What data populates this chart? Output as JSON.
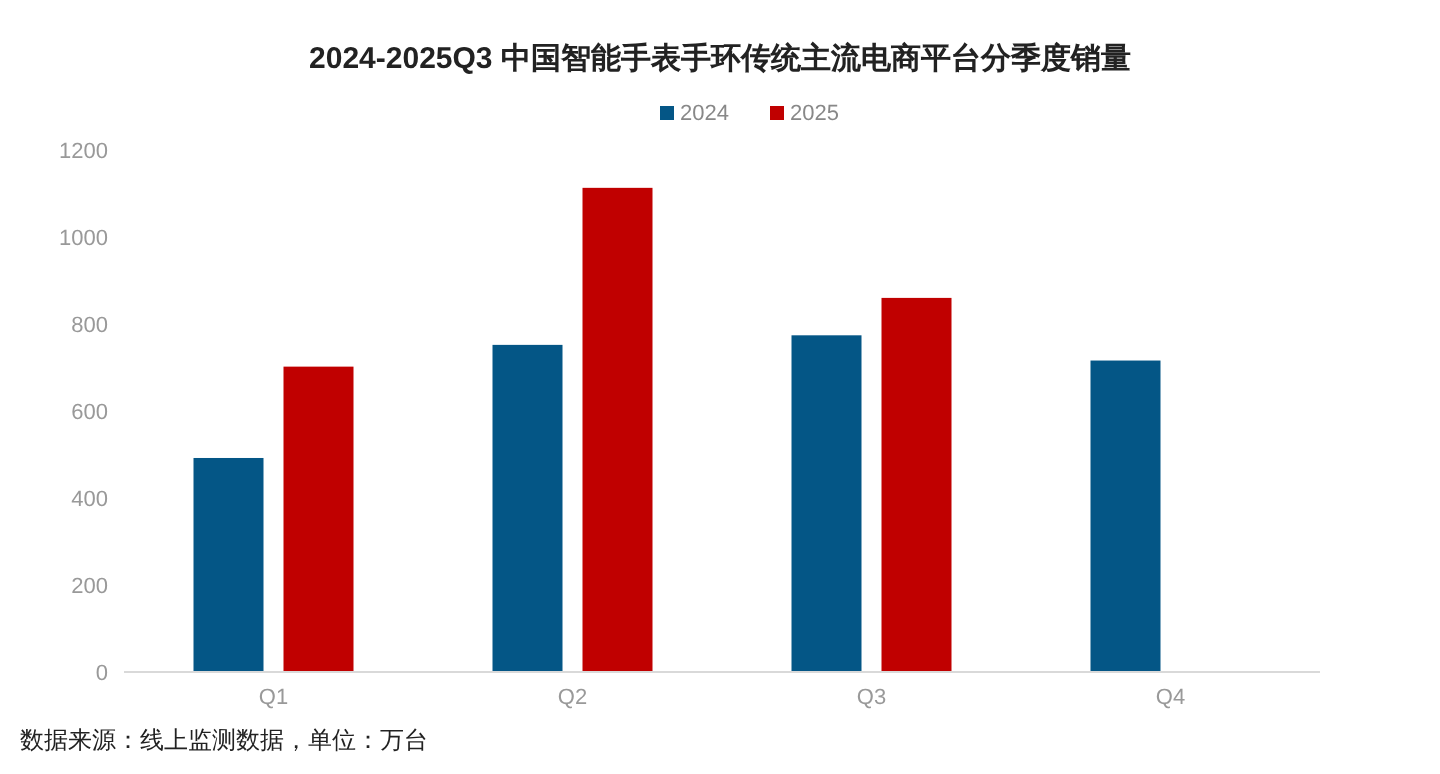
{
  "chart_data": {
    "type": "bar",
    "title": "2024-2025Q3 中国智能手表手环传统主流电商平台分季度销量",
    "categories": [
      "Q1",
      "Q2",
      "Q3",
      "Q4"
    ],
    "series": [
      {
        "name": "2024",
        "color": "#045686",
        "values": [
          492,
          752,
          774,
          716
        ]
      },
      {
        "name": "2025",
        "color": "#c00000",
        "values": [
          702,
          1113,
          860,
          null
        ]
      }
    ],
    "ylim": [
      0,
      1200
    ],
    "yticks": [
      0,
      200,
      400,
      600,
      800,
      1000,
      1200
    ],
    "grid": false,
    "legend": "top",
    "annotations": [
      "数据来源：线上监测数据，单位：万台"
    ]
  }
}
